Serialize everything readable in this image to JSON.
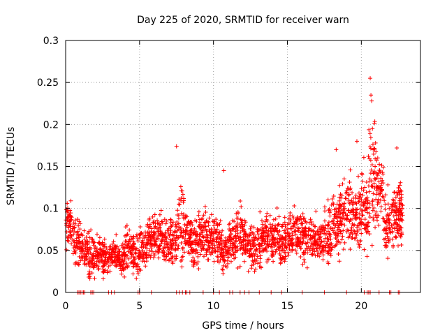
{
  "chart_data": {
    "type": "scatter",
    "title": "Day 225 of 2020, SRMTID for receiver warn",
    "xlabel": "GPS time / hours",
    "ylabel": "SRMTID / TECUs",
    "xlim": [
      0,
      24
    ],
    "ylim": [
      0,
      0.3
    ],
    "xticks": [
      0,
      5,
      10,
      15,
      20
    ],
    "yticks": [
      0,
      0.05,
      0.1,
      0.15,
      0.2,
      0.25,
      0.3
    ],
    "ytick_labels": [
      "0",
      "0.05",
      "0.1",
      "0.15",
      "0.2",
      "0.25",
      "0.3"
    ],
    "grid": true,
    "marker": "+",
    "series": [
      {
        "name": "SRMTID",
        "color": "#ff0000",
        "approximate_trend": {
          "x": [
            0,
            0.5,
            1,
            1.5,
            2,
            2.5,
            3,
            3.5,
            4,
            4.5,
            5,
            5.5,
            6,
            6.5,
            7,
            7.5,
            8,
            8.5,
            9,
            9.5,
            10,
            10.5,
            11,
            11.5,
            12,
            12.5,
            13,
            13.5,
            14,
            14.5,
            15,
            15.5,
            16,
            16.5,
            17,
            17.5,
            18,
            18.5,
            19,
            19.5,
            20,
            20.5,
            21,
            21.5,
            22,
            22.5
          ],
          "y": [
            0.08,
            0.06,
            0.05,
            0.045,
            0.045,
            0.04,
            0.045,
            0.04,
            0.05,
            0.045,
            0.05,
            0.06,
            0.065,
            0.06,
            0.06,
            0.08,
            0.07,
            0.06,
            0.07,
            0.065,
            0.06,
            0.05,
            0.06,
            0.07,
            0.06,
            0.055,
            0.06,
            0.065,
            0.065,
            0.06,
            0.07,
            0.07,
            0.065,
            0.06,
            0.06,
            0.07,
            0.08,
            0.09,
            0.1,
            0.09,
            0.1,
            0.14,
            0.12,
            0.08,
            0.09,
            0.1
          ],
          "spread": [
            0.02,
            0.02,
            0.015,
            0.02,
            0.015,
            0.015,
            0.015,
            0.015,
            0.02,
            0.02,
            0.02,
            0.02,
            0.02,
            0.02,
            0.02,
            0.035,
            0.02,
            0.02,
            0.02,
            0.02,
            0.025,
            0.02,
            0.02,
            0.025,
            0.02,
            0.02,
            0.02,
            0.02,
            0.025,
            0.02,
            0.02,
            0.02,
            0.02,
            0.02,
            0.02,
            0.025,
            0.03,
            0.03,
            0.03,
            0.03,
            0.04,
            0.05,
            0.03,
            0.03,
            0.03,
            0.03
          ]
        },
        "peaks": [
          {
            "x": 7.5,
            "y": 0.174
          },
          {
            "x": 10.7,
            "y": 0.145
          },
          {
            "x": 18.3,
            "y": 0.17
          },
          {
            "x": 19.7,
            "y": 0.18
          },
          {
            "x": 20.6,
            "y": 0.255
          },
          {
            "x": 20.65,
            "y": 0.235
          },
          {
            "x": 20.7,
            "y": 0.228
          },
          {
            "x": 20.75,
            "y": 0.195
          },
          {
            "x": 22.4,
            "y": 0.172
          }
        ],
        "zero_values_at_x": [
          0.8,
          0.9,
          1.0,
          1.1,
          1.2,
          1.3,
          1.7,
          1.8,
          1.9,
          2.9,
          3.1,
          3.3,
          4.9,
          5.0,
          5.8,
          7.5,
          7.7,
          7.9,
          8.1,
          8.2,
          8.4,
          9.3,
          10.0,
          10.4,
          11.1,
          11.3,
          11.8,
          12.1,
          12.4,
          13.1,
          13.9,
          14.6,
          16.0,
          17.5,
          19.0,
          20.2,
          20.4,
          20.5,
          20.6,
          21.2,
          21.9,
          22.0,
          22.5,
          22.6
        ]
      }
    ]
  }
}
